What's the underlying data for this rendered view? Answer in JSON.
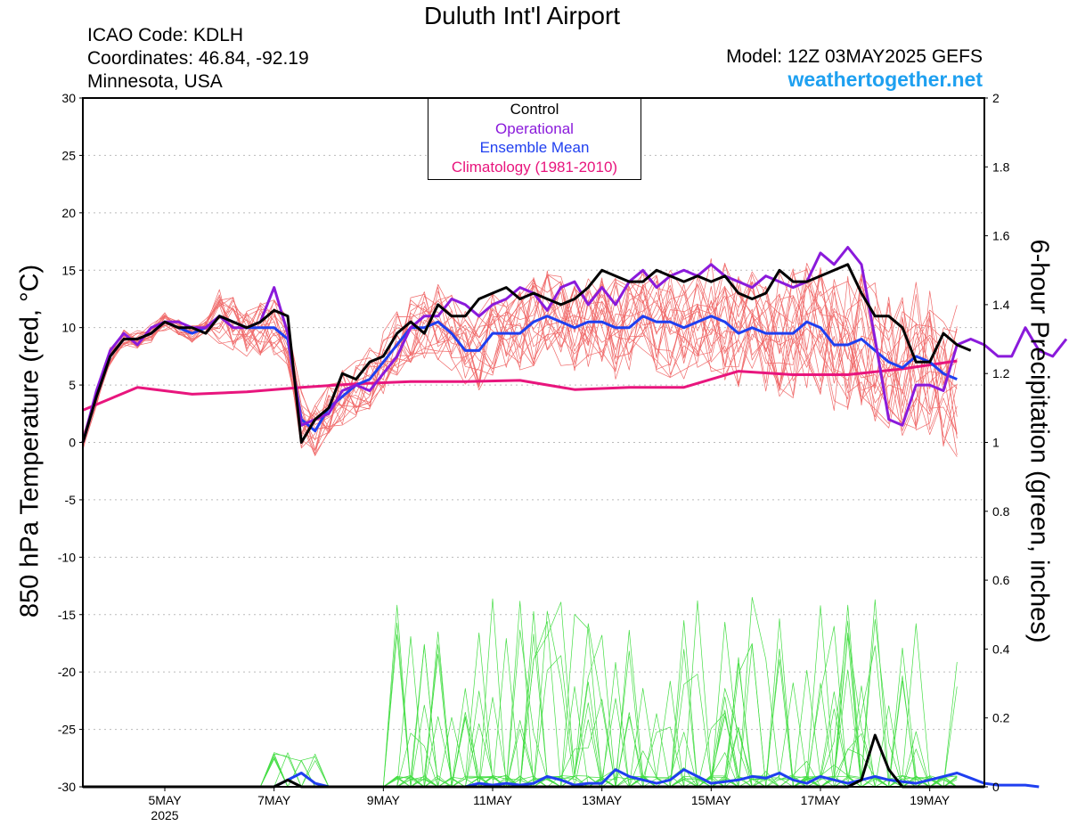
{
  "header": {
    "title": "Duluth Int'l Airport",
    "icao": "ICAO Code: KDLH",
    "coordinates": "Coordinates: 46.84, -92.19",
    "location": "Minnesota, USA",
    "model": "Model: 12Z 03MAY2025 GEFS",
    "site": "weathertogether.net"
  },
  "colors": {
    "member_temp": "#f06a6a",
    "member_precip": "#44dd44",
    "control": "#000000",
    "operational": "#8a1adb",
    "ensemble_mean": "#1f3ff0",
    "climatology": "#e8157d",
    "site": "#1ea0f0"
  },
  "legend": [
    {
      "name": "Control",
      "color": "#000000"
    },
    {
      "name": "Operational",
      "color": "#8a1adb"
    },
    {
      "name": "Ensemble Mean",
      "color": "#1f3ff0"
    },
    {
      "name": "Climatology (1981-2010)",
      "color": "#e8157d"
    }
  ],
  "chart_data": {
    "type": "line",
    "ylabel": "850 hPa Temperature (red, °C)",
    "y2label": "6-hour Precipitation (green, inches)",
    "ylim": [
      -30,
      30
    ],
    "y2lim": [
      0,
      2
    ],
    "yticks": [
      30,
      25,
      20,
      15,
      10,
      5,
      0,
      -5,
      -10,
      -15,
      -20,
      -25,
      -30
    ],
    "y2ticks": [
      2,
      1.8,
      1.6,
      1.4,
      1.2,
      1,
      0.8,
      0.6,
      0.4,
      0.2,
      0
    ],
    "xlim": [
      0,
      16.5
    ],
    "x_unit": "days after 12Z 03MAY2025",
    "xticks": [
      {
        "label": "5MAY",
        "sub": "2025",
        "x": 1.5
      },
      {
        "label": "7MAY",
        "sub": "",
        "x": 3.5
      },
      {
        "label": "9MAY",
        "sub": "",
        "x": 5.5
      },
      {
        "label": "11MAY",
        "sub": "",
        "x": 7.5
      },
      {
        "label": "13MAY",
        "sub": "",
        "x": 9.5
      },
      {
        "label": "15MAY",
        "sub": "",
        "x": 11.5
      },
      {
        "label": "17MAY",
        "sub": "",
        "x": 13.5
      },
      {
        "label": "19MAY",
        "sub": "",
        "x": 15.5
      }
    ],
    "grid": true,
    "legend_position": "top-center",
    "time_step_days": 0.25,
    "series": [
      {
        "name": "Control",
        "axis": "temperature",
        "values": [
          0,
          4,
          7.5,
          9,
          9,
          9.5,
          10.5,
          10,
          10,
          9.5,
          11,
          10.5,
          10,
          10.5,
          11.5,
          11,
          0,
          2,
          3,
          6,
          5.5,
          7,
          7.5,
          9.5,
          10.5,
          9.5,
          12,
          11,
          11,
          12.5,
          13,
          13.5,
          12.5,
          13,
          12.5,
          12,
          12.5,
          13.5,
          15,
          14.5,
          14,
          14,
          15,
          14.5,
          14,
          14.5,
          14,
          14.5,
          13,
          12.5,
          13,
          15,
          14,
          14,
          14.5,
          15,
          15.5,
          13,
          11,
          11,
          10,
          7,
          7,
          9.5,
          8.5,
          8
        ]
      },
      {
        "name": "Operational",
        "axis": "temperature",
        "values": [
          0,
          4.5,
          8,
          9.5,
          8.5,
          10,
          10.5,
          10.5,
          10,
          10,
          11,
          10,
          10,
          10.5,
          13.5,
          9.5,
          1.5,
          2,
          2.5,
          4.5,
          5,
          4.5,
          6,
          7.5,
          10,
          11,
          11,
          12.5,
          12,
          11,
          12,
          12.5,
          13.5,
          13,
          11.5,
          13.5,
          14,
          12,
          13.5,
          12,
          14,
          15,
          13.5,
          14.5,
          15,
          14.5,
          15.5,
          14.5,
          14,
          13.5,
          14.5,
          14,
          13.5,
          14,
          16.5,
          15.5,
          17,
          15.5,
          9,
          2,
          1.5,
          5,
          5,
          4.5,
          8.5,
          9,
          8.5,
          7.5,
          7.5,
          10,
          8,
          7.5,
          9
        ]
      },
      {
        "name": "Ensemble Mean",
        "axis": "temperature",
        "values": [
          0,
          4,
          7.5,
          9,
          9,
          9.5,
          10.5,
          10,
          9.5,
          10,
          11,
          10.5,
          10,
          10,
          10,
          9,
          2,
          1,
          3,
          4,
          5,
          5.5,
          7,
          8.5,
          10,
          10,
          10.5,
          9.5,
          8,
          8,
          9.5,
          9.5,
          9.5,
          10.5,
          11,
          10.5,
          10,
          10.5,
          10.5,
          10,
          10,
          11,
          10.5,
          10.5,
          10,
          10.5,
          11,
          10.5,
          9.5,
          10,
          9.5,
          9.5,
          9.5,
          10.5,
          10,
          8.5,
          8.5,
          9,
          8,
          7,
          6.5,
          7.5,
          7,
          6,
          5.5
        ]
      },
      {
        "name": "Climatology (1981-2010)",
        "axis": "temperature",
        "values": [
          2.8,
          4.8,
          4.2,
          4.4,
          4.8,
          5.1,
          5.3,
          5.3,
          5.4,
          4.6,
          4.8,
          4.8,
          6.2,
          5.9,
          5.9,
          6.4,
          7.1
        ],
        "x_step_days": 1
      },
      {
        "name": "Control precip",
        "axis": "precipitation",
        "values": [
          0,
          0,
          0,
          0,
          0,
          0,
          0,
          0,
          0,
          0,
          0,
          0,
          0,
          0,
          0,
          0.02,
          0,
          0,
          0,
          0,
          0,
          0,
          0,
          0,
          0,
          0,
          0,
          0,
          0,
          0,
          0,
          0,
          0,
          0,
          0,
          0,
          0,
          0,
          0,
          0,
          0,
          0,
          0,
          0,
          0,
          0,
          0,
          0,
          0,
          0,
          0,
          0,
          0,
          0,
          0,
          0,
          0,
          0.02,
          0.15,
          0.05,
          0,
          0,
          0,
          0,
          0,
          0,
          0
        ]
      },
      {
        "name": "Ensemble Mean precip",
        "axis": "precipitation",
        "values": [
          0,
          0,
          0,
          0,
          0,
          0,
          0,
          0,
          0,
          0,
          0,
          0,
          0,
          0,
          0,
          0.02,
          0.04,
          0.01,
          0,
          0,
          0,
          0,
          0,
          0,
          0,
          0,
          0,
          0,
          0,
          0.01,
          0.005,
          0.01,
          0.005,
          0.01,
          0.03,
          0.02,
          0.005,
          0.01,
          0.01,
          0.05,
          0.03,
          0.02,
          0.01,
          0.02,
          0.05,
          0.03,
          0.01,
          0.015,
          0.02,
          0.03,
          0.025,
          0.04,
          0.02,
          0.01,
          0.03,
          0.02,
          0.01,
          0.02,
          0.03,
          0.02,
          0.015,
          0.01,
          0.02,
          0.03,
          0.04,
          0.025,
          0.01,
          0.005,
          0.005,
          0.005,
          0
        ]
      }
    ]
  }
}
